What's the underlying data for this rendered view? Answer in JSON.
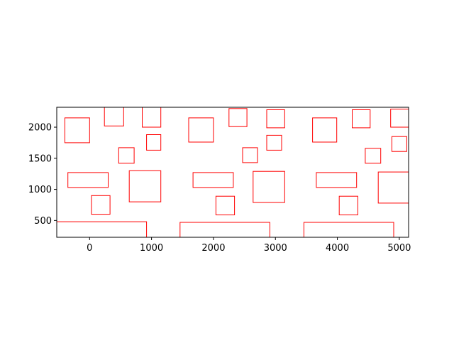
{
  "chart_data": {
    "type": "rectangles",
    "title": "",
    "xlabel": "",
    "ylabel": "",
    "xlim": [
      -530,
      5150
    ],
    "ylim": [
      230,
      2320
    ],
    "xticks": [
      0,
      1000,
      2000,
      3000,
      4000,
      5000
    ],
    "yticks": [
      500,
      1000,
      1500,
      2000
    ],
    "xtick_labels": [
      "0",
      "1000",
      "2000",
      "3000",
      "4000",
      "5000"
    ],
    "ytick_labels": [
      "500",
      "1000",
      "1500",
      "2000"
    ],
    "edge_color": "#ff0000",
    "fill": "none",
    "grid": false,
    "rectangles": [
      {
        "x0": -400,
        "y0": 1750,
        "x1": 0,
        "y1": 2150
      },
      {
        "x0": 240,
        "y0": 2020,
        "x1": 550,
        "y1": 2320
      },
      {
        "x0": 850,
        "y0": 2000,
        "x1": 1150,
        "y1": 2320
      },
      {
        "x0": 470,
        "y0": 1420,
        "x1": 720,
        "y1": 1670
      },
      {
        "x0": 920,
        "y0": 1630,
        "x1": 1150,
        "y1": 1880
      },
      {
        "x0": -350,
        "y0": 1030,
        "x1": 300,
        "y1": 1270
      },
      {
        "x0": 640,
        "y0": 800,
        "x1": 1150,
        "y1": 1300
      },
      {
        "x0": 30,
        "y0": 600,
        "x1": 330,
        "y1": 900
      },
      {
        "x0": -530,
        "y0": 230,
        "x1": 920,
        "y1": 480
      },
      {
        "x0": 1600,
        "y0": 1760,
        "x1": 2000,
        "y1": 2150
      },
      {
        "x0": 2250,
        "y0": 2010,
        "x1": 2540,
        "y1": 2300
      },
      {
        "x0": 2860,
        "y0": 1990,
        "x1": 3150,
        "y1": 2280
      },
      {
        "x0": 2470,
        "y0": 1430,
        "x1": 2710,
        "y1": 1670
      },
      {
        "x0": 2860,
        "y0": 1630,
        "x1": 3100,
        "y1": 1870
      },
      {
        "x0": 1670,
        "y0": 1030,
        "x1": 2320,
        "y1": 1270
      },
      {
        "x0": 2640,
        "y0": 790,
        "x1": 3150,
        "y1": 1290
      },
      {
        "x0": 2040,
        "y0": 590,
        "x1": 2340,
        "y1": 890
      },
      {
        "x0": 1460,
        "y0": 230,
        "x1": 2910,
        "y1": 470
      },
      {
        "x0": 3600,
        "y0": 1760,
        "x1": 3990,
        "y1": 2150
      },
      {
        "x0": 4240,
        "y0": 1990,
        "x1": 4530,
        "y1": 2280
      },
      {
        "x0": 4860,
        "y0": 2000,
        "x1": 5150,
        "y1": 2290
      },
      {
        "x0": 4450,
        "y0": 1420,
        "x1": 4700,
        "y1": 1660
      },
      {
        "x0": 4880,
        "y0": 1610,
        "x1": 5120,
        "y1": 1850
      },
      {
        "x0": 3660,
        "y0": 1030,
        "x1": 4310,
        "y1": 1270
      },
      {
        "x0": 4660,
        "y0": 780,
        "x1": 5150,
        "y1": 1280
      },
      {
        "x0": 4030,
        "y0": 590,
        "x1": 4330,
        "y1": 890
      },
      {
        "x0": 3460,
        "y0": 230,
        "x1": 4910,
        "y1": 470
      }
    ]
  }
}
